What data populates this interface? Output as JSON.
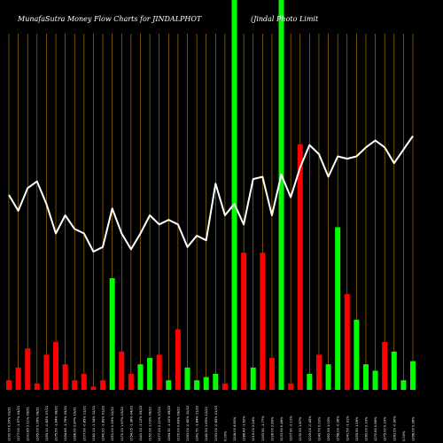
{
  "header": {
    "title": "MunafaSutra  Money Flow  Charts for JINDALPHOT",
    "company": "(Jindal Photo  Limit"
  },
  "colors": {
    "background": "#000000",
    "grid": "#b8860b",
    "up": "#00ff00",
    "down": "#ff0000",
    "line": "#ffffff"
  },
  "chart_data": {
    "type": "bar",
    "title": "MunafaSutra  Money Flow  Charts for JINDALPHOT",
    "subtitle": "(Jindal Photo  Limit",
    "categories": [
      "1200.70 0.95% 03/21",
      "1177.00 -1.97% 04/21",
      "1201.85 2.11% 05/21",
      "1205.00 0.26% 06/21",
      "1195.10 -0.82% 07/21",
      "1175.50 -1.64% 08/21",
      "1154.85 -1.76% 09/21",
      "1188.00 2.87% 10/21",
      "1177.90 -0.85% 11/21",
      "1162.10 -1.34% 12/21",
      "1140.20 -1.89% 01/22",
      "1151.00 0.95% 02/22",
      "1170.20 1.67% 03/22",
      "1154.05 -1.38% 04/22",
      "1141.10 -1.12% 05/22",
      "1152.90 1.03% 06/22",
      "1177.25 2.11% 07/22",
      "1164.30 -1.10% 08/22",
      "1170.00 0.49% 09/22",
      "1163.00 -0.60% 10/22",
      "1141.70 -1.84% 11/22",
      "1160.50 1.65% 12/22",
      "1153.00 -0.65% 01/23",
      "0.00%",
      "1208.00 4.80%",
      "1188.40 -1.62%",
      "1215.00 2.24%",
      "1193.50 -1.77%",
      "1228.00 2.89%",
      "1233.90 0.48%",
      "1207.90 -2.11%",
      "1230.50 1.87%",
      "1225.00 -0.45%",
      "1249.70 2.02%",
      "1262.55 1.03%",
      "1258.00 -0.36%",
      "1241.50 -1.31%",
      "1255.90 1.16%",
      "1260.00 0.33%",
      "1270.80 0.86%",
      "1275.00 0.33%",
      "1263.50 -0.90%",
      "0.00%",
      "1268.00 0.36%"
    ],
    "series": [
      {
        "values": [
          3,
          7,
          13,
          2,
          11,
          15,
          8,
          3,
          5,
          1,
          3,
          35,
          12,
          5,
          8,
          10,
          11,
          3,
          19,
          7,
          3,
          4,
          5,
          2,
          87,
          43,
          7,
          43,
          10,
          75,
          2,
          77,
          5,
          11,
          8,
          51,
          30,
          22,
          8,
          6,
          15,
          12,
          3,
          9
        ],
        "colors": [
          "down",
          "down",
          "down",
          "down",
          "down",
          "down",
          "down",
          "down",
          "down",
          "down",
          "down",
          "up",
          "down",
          "down",
          "up",
          "up",
          "down",
          "up",
          "down",
          "up",
          "up",
          "up",
          "up",
          "down",
          "up",
          "down",
          "up",
          "down",
          "down",
          "up",
          "down",
          "down",
          "up",
          "down",
          "up",
          "up",
          "down",
          "up",
          "up",
          "up",
          "down",
          "up",
          "up",
          "up"
        ],
        "full_height": [
          false,
          false,
          false,
          false,
          false,
          false,
          false,
          false,
          false,
          false,
          false,
          false,
          false,
          false,
          false,
          false,
          false,
          false,
          false,
          false,
          false,
          false,
          false,
          false,
          true,
          false,
          false,
          false,
          false,
          true,
          false,
          false,
          false,
          false,
          false,
          false,
          false,
          false,
          false,
          false,
          false,
          false,
          false,
          false
        ]
      },
      {
        "type": "line",
        "values": [
          1216,
          1209,
          1219,
          1222,
          1212,
          1199,
          1207,
          1201,
          1199,
          1191,
          1193,
          1210,
          1199,
          1192,
          1199,
          1207,
          1203,
          1205,
          1203,
          1193,
          1198,
          1196,
          1221,
          1207,
          1212,
          1203,
          1223,
          1224,
          1207,
          1225,
          1215,
          1228,
          1238,
          1234,
          1224,
          1233,
          1232,
          1233,
          1237,
          1240,
          1237,
          1230,
          1236,
          1242
        ]
      }
    ],
    "bar_ylim": [
      0,
      100
    ],
    "line_ylim": [
      1130,
      1302
    ],
    "grid": "vertical",
    "legend": "none"
  }
}
